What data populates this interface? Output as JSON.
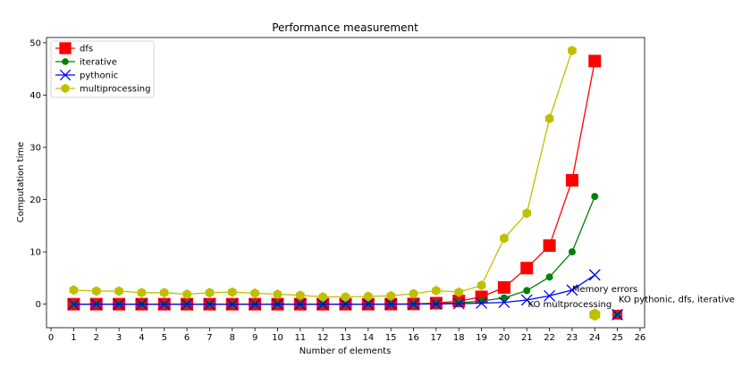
{
  "chart_data": {
    "type": "line",
    "title": "Performance measurement",
    "xlabel": "Number of elements",
    "ylabel": "Computation time",
    "xlim": [
      -0.2,
      26.2
    ],
    "ylim": [
      -4.5,
      51
    ],
    "xticks": [
      0,
      1,
      2,
      3,
      4,
      5,
      6,
      7,
      8,
      9,
      10,
      11,
      12,
      13,
      14,
      15,
      16,
      17,
      18,
      19,
      20,
      21,
      22,
      23,
      24,
      25,
      26
    ],
    "yticks": [
      0,
      10,
      20,
      30,
      40,
      50
    ],
    "grid": false,
    "legend_position": "top-left",
    "series": [
      {
        "name": "dfs",
        "color": "#ff0000",
        "marker": "square",
        "x": [
          1,
          2,
          3,
          4,
          5,
          6,
          7,
          8,
          9,
          10,
          11,
          12,
          13,
          14,
          15,
          16,
          17,
          18,
          19,
          20,
          21,
          22,
          23,
          24
        ],
        "values": [
          0,
          0,
          0,
          0,
          0,
          0,
          0,
          0,
          0,
          0,
          0,
          0,
          0,
          0,
          0.02,
          0.05,
          0.2,
          0.6,
          1.4,
          3.2,
          6.9,
          11.2,
          23.7,
          46.5
        ]
      },
      {
        "name": "iterative",
        "color": "#008000",
        "marker": "circle",
        "x": [
          1,
          2,
          3,
          4,
          5,
          6,
          7,
          8,
          9,
          10,
          11,
          12,
          13,
          14,
          15,
          16,
          17,
          18,
          19,
          20,
          21,
          22,
          23,
          24
        ],
        "values": [
          0,
          0,
          0,
          0,
          0,
          0,
          0,
          0,
          0,
          0,
          0,
          0,
          0,
          0,
          0.01,
          0.03,
          0.1,
          0.25,
          0.6,
          1.2,
          2.6,
          5.2,
          10.0,
          20.6
        ]
      },
      {
        "name": "pythonic",
        "color": "#0000ff",
        "marker": "x",
        "x": [
          1,
          2,
          3,
          4,
          5,
          6,
          7,
          8,
          9,
          10,
          11,
          12,
          13,
          14,
          15,
          16,
          17,
          18,
          19,
          20,
          21,
          22,
          23,
          24
        ],
        "values": [
          0,
          0,
          0,
          0,
          0,
          0,
          0,
          0,
          0,
          0,
          0,
          0,
          0,
          0,
          0,
          0.02,
          0.05,
          0.1,
          0.2,
          0.35,
          0.8,
          1.6,
          2.7,
          5.6
        ]
      },
      {
        "name": "multiprocessing",
        "color": "#bfbf00",
        "marker": "hexagon",
        "x": [
          1,
          2,
          3,
          4,
          5,
          6,
          7,
          8,
          9,
          10,
          11,
          12,
          13,
          14,
          15,
          16,
          17,
          18,
          19,
          20,
          21,
          22,
          23
        ],
        "values": [
          2.7,
          2.5,
          2.5,
          2.2,
          2.2,
          1.9,
          2.2,
          2.3,
          2.1,
          1.9,
          1.7,
          1.4,
          1.4,
          1.5,
          1.6,
          2.0,
          2.6,
          2.3,
          3.6,
          12.6,
          17.4,
          35.5,
          48.5
        ]
      }
    ],
    "failure_markers": [
      {
        "series": "multiprocessing",
        "x": 24,
        "y": -2
      },
      {
        "series": "dfs",
        "x": 25,
        "y": -2
      },
      {
        "series": "iterative",
        "x": 25,
        "y": -2
      },
      {
        "series": "pythonic",
        "x": 25,
        "y": -2
      }
    ],
    "annotations": [
      {
        "text": "Memory errors",
        "x": 23.0,
        "y": 2.3
      },
      {
        "text": "KO multprocessing",
        "x": 21.05,
        "y": -0.6
      },
      {
        "text": "KO pythonic, dfs, iterative",
        "x": 25.05,
        "y": 0.4
      }
    ]
  }
}
